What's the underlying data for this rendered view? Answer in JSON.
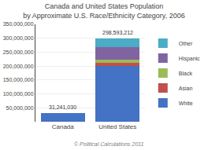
{
  "chart_data": {
    "type": "bar",
    "stacked": true,
    "title": "Canada and United States Population",
    "subtitle": "by Approximate U.S. Race/Ethnicity Category, 2006",
    "categories": [
      "Canada",
      "United States"
    ],
    "series": [
      {
        "name": "White",
        "color": "#4472C4",
        "values": [
          31241030,
          199491000
        ]
      },
      {
        "name": "Asian",
        "color": "#C0504D",
        "values": [
          0,
          10900000
        ]
      },
      {
        "name": "Black",
        "color": "#9BBB59",
        "values": [
          0,
          13400000
        ]
      },
      {
        "name": "Hispanic",
        "color": "#8064A2",
        "values": [
          0,
          44300000
        ]
      },
      {
        "name": "Other",
        "color": "#4BACC6",
        "values": [
          0,
          30502212
        ]
      }
    ],
    "ylim": [
      0,
      350000000
    ],
    "yticks": [
      {
        "value": 50000000,
        "label": "50,000,000"
      },
      {
        "value": 100000000,
        "label": "100,000,000"
      },
      {
        "value": 150000000,
        "label": "150,000,000"
      },
      {
        "value": 200000000,
        "label": "200,000,000"
      },
      {
        "value": 250000000,
        "label": "250,000,000"
      },
      {
        "value": 300000000,
        "label": "300,000,000"
      },
      {
        "value": 350000000,
        "label": "350,000,000"
      }
    ],
    "grid": true,
    "legend": "right",
    "annotations": [
      {
        "category": "Canada",
        "value": 31241030,
        "text": "31,241,030"
      },
      {
        "category": "United States",
        "value": 298593212,
        "text": "298,593,212"
      },
      {
        "text": "© Political Calculations 2011"
      }
    ]
  }
}
